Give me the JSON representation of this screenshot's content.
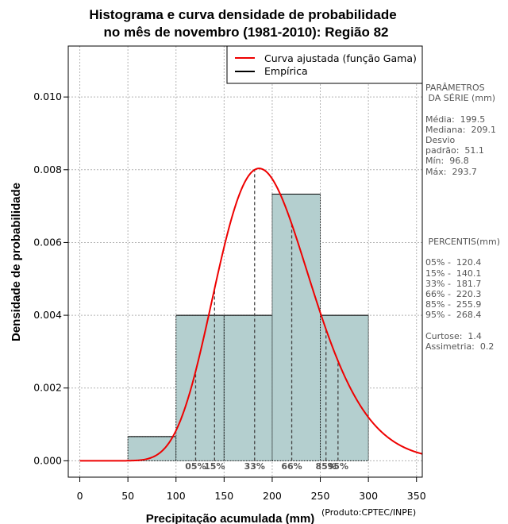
{
  "chart_data": {
    "type": "bar",
    "title_line1": "Histograma e curva densidade de probabilidade",
    "title_line2": "no mês de novembro (1981-2010): Região 82",
    "xlabel": "Precipitação acumulada (mm)",
    "ylabel": "Densidade de probabilidade",
    "credit": "(Produto:CPTEC/INPE)",
    "xlim": [
      -12,
      356
    ],
    "ylim": [
      -0.00045,
      0.0114
    ],
    "xticks": [
      0,
      50,
      100,
      150,
      200,
      250,
      300,
      350
    ],
    "yticks": [
      0.0,
      0.002,
      0.004,
      0.006,
      0.008,
      0.01
    ],
    "ytick_labels": [
      "0.000",
      "0.002",
      "0.004",
      "0.006",
      "0.008",
      "0.010"
    ],
    "bins": [
      {
        "start": 50,
        "end": 100,
        "density": 0.000667
      },
      {
        "start": 100,
        "end": 150,
        "density": 0.004
      },
      {
        "start": 150,
        "end": 200,
        "density": 0.004
      },
      {
        "start": 200,
        "end": 250,
        "density": 0.00733
      },
      {
        "start": 250,
        "end": 300,
        "density": 0.004
      }
    ],
    "gamma_fit": {
      "shape": 15.26,
      "scale": 13.07,
      "x_start": 0,
      "x_end": 356
    },
    "percentile_markers": [
      {
        "label": "05%",
        "value": 120.4
      },
      {
        "label": "15%",
        "value": 140.1
      },
      {
        "label": "33%",
        "value": 181.7
      },
      {
        "label": "66%",
        "value": 220.3
      },
      {
        "label": "85%",
        "value": 255.9
      },
      {
        "label": "95%",
        "value": 268.4
      }
    ],
    "legend": {
      "position": "top-right",
      "fit_label": "Curva ajustada (função Gama)",
      "empirical_label": "Empírica"
    },
    "colors": {
      "bar_fill": "#b4cfcf",
      "curve": "#ee0000",
      "grid": "#b4b4b4"
    }
  },
  "stats_panel": {
    "lines": [
      "PARÂMETROS",
      " DA SÉRIE (mm)",
      "",
      "Média:  199.5",
      "Mediana:  209.1",
      "Desvio",
      "padrão:  51.1",
      "Mín:  96.8",
      "Máx:  293.7"
    ]
  },
  "percentile_panel": {
    "lines": [
      " PERCENTIS(mm)",
      "",
      "05% -  120.4",
      "15% -  140.1",
      "33% -  181.7",
      "66% -  220.3",
      "85% -  255.9",
      "95% -  268.4",
      "",
      "Curtose:  1.4",
      "Assimetria:  0.2"
    ]
  }
}
